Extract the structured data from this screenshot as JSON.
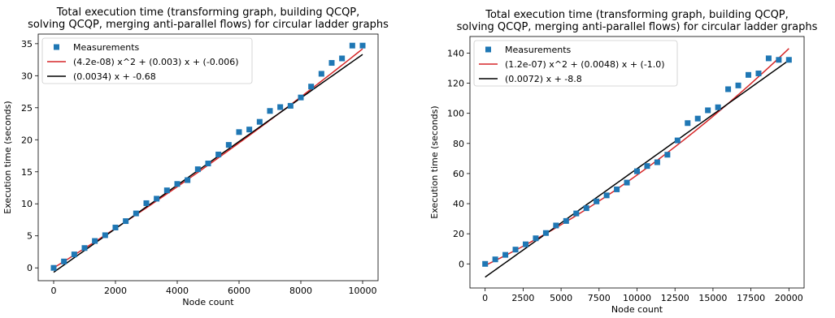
{
  "chart_data": [
    {
      "type": "scatter",
      "title_lines": [
        "Total execution time (transforming graph, building QCQP,",
        "solving QCQP, merging anti-parallel flows) for circular ladder graphs"
      ],
      "xlabel": "Node count",
      "ylabel": "Execution time (seconds)",
      "xlim": [
        -500,
        10500
      ],
      "ylim": [
        -2,
        36.5
      ],
      "xticks": [
        0,
        2000,
        4000,
        6000,
        8000,
        10000
      ],
      "yticks": [
        0,
        5,
        10,
        15,
        20,
        25,
        30,
        35
      ],
      "legend_position": "upper-left",
      "series": [
        {
          "name": "Measurements",
          "kind": "scatter",
          "color": "#1f77b4",
          "x": [
            0,
            333,
            667,
            1000,
            1333,
            1667,
            2000,
            2333,
            2667,
            3000,
            3333,
            3667,
            4000,
            4333,
            4667,
            5000,
            5333,
            5667,
            6000,
            6333,
            6667,
            7000,
            7333,
            7667,
            8000,
            8333,
            8667,
            9000,
            9333,
            9667,
            10000
          ],
          "y": [
            0.0,
            1.0,
            2.1,
            3.1,
            4.2,
            5.1,
            6.3,
            7.3,
            8.5,
            10.1,
            10.8,
            12.1,
            13.1,
            13.7,
            15.4,
            16.3,
            17.7,
            19.2,
            21.2,
            21.6,
            22.8,
            24.5,
            25.1,
            25.3,
            26.6,
            28.3,
            30.3,
            32.0,
            32.7,
            34.7,
            34.7
          ]
        },
        {
          "name": "(4.2e-08) x^2 + (0.003) x + (-0.006)",
          "kind": "quadratic",
          "color": "#d62728",
          "coef": [
            4.2e-08,
            0.003,
            -0.006
          ],
          "range": [
            0,
            10000
          ]
        },
        {
          "name": "(0.0034) x + -0.68",
          "kind": "linear",
          "color": "#000000",
          "coef": [
            0.0034,
            -0.68
          ],
          "range": [
            0,
            10000
          ]
        }
      ]
    },
    {
      "type": "scatter",
      "title_lines": [
        "Total execution time (transforming graph, building QCQP,",
        "solving QCQP, merging anti-parallel flows) for circular ladder graphs"
      ],
      "xlabel": "Node count",
      "ylabel": "Execution time (seconds)",
      "xlim": [
        -1000,
        21000
      ],
      "ylim": [
        -16,
        151
      ],
      "xticks": [
        0,
        2500,
        5000,
        7500,
        10000,
        12500,
        15000,
        17500,
        20000
      ],
      "yticks": [
        0,
        20,
        40,
        60,
        80,
        100,
        120,
        140
      ],
      "legend_position": "upper-left",
      "series": [
        {
          "name": "Measurements",
          "kind": "scatter",
          "color": "#1f77b4",
          "x": [
            0,
            667,
            1333,
            2000,
            2667,
            3333,
            4000,
            4667,
            5333,
            6000,
            6667,
            7333,
            8000,
            8667,
            9333,
            10000,
            10667,
            11333,
            12000,
            12667,
            13333,
            14000,
            14667,
            15333,
            16000,
            16667,
            17333,
            18000,
            18667,
            19333,
            20000
          ],
          "y": [
            0,
            3.0,
            6.0,
            9.5,
            13.0,
            17.0,
            20.5,
            25.5,
            28.5,
            33.5,
            37.0,
            41.5,
            45.5,
            49.5,
            54.0,
            61.5,
            65.0,
            67.5,
            72.5,
            82.0,
            93.5,
            96.5,
            102.0,
            104.0,
            116.0,
            118.5,
            125.5,
            126.5,
            136.5,
            135.5,
            135.5
          ]
        },
        {
          "name": "(1.2e-07) x^2 + (0.0048) x + (-1.0)",
          "kind": "quadratic",
          "color": "#d62728",
          "coef": [
            1.2e-07,
            0.0048,
            -1.0
          ],
          "range": [
            0,
            20000
          ]
        },
        {
          "name": "(0.0072) x + -8.8",
          "kind": "linear",
          "color": "#000000",
          "coef": [
            0.0072,
            -8.8
          ],
          "range": [
            0,
            20000
          ]
        }
      ]
    }
  ]
}
